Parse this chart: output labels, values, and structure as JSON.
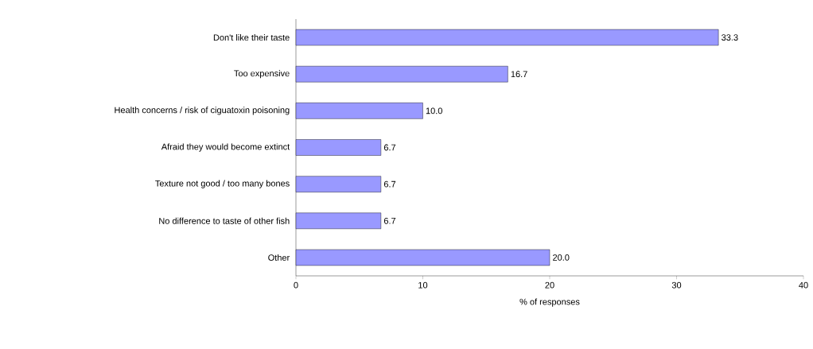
{
  "chart_data": {
    "type": "bar",
    "orientation": "horizontal",
    "xlabel": "% of responses",
    "categories": [
      "Don't like their taste",
      "Too expensive",
      "Health concerns / risk of ciguatoxin poisoning",
      "Afraid they would become extinct",
      "Texture not good / too many bones",
      "No difference to taste of other fish",
      "Other"
    ],
    "values": [
      33.3,
      16.7,
      10.0,
      6.7,
      6.7,
      6.7,
      20.0
    ],
    "value_labels": [
      "33.3",
      "16.7",
      "10.0",
      "6.7",
      "6.7",
      "6.7",
      "20.0"
    ],
    "color": "#9999ff",
    "xlim": [
      0,
      40
    ],
    "xticks": [
      0,
      10,
      20,
      30,
      40
    ]
  }
}
